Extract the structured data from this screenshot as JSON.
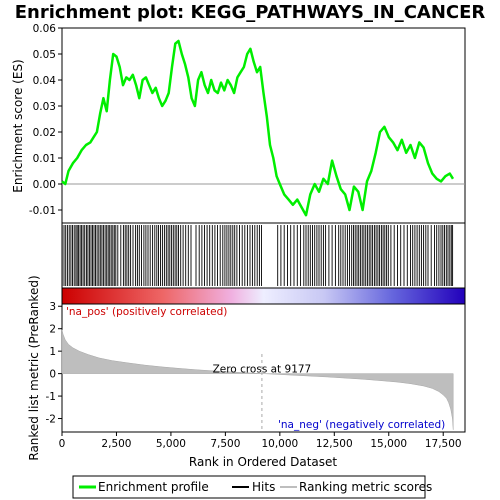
{
  "chart_data": {
    "type": "line",
    "title": "Enrichment plot: KEGG_PATHWAYS_IN_CANCER",
    "es_panel": {
      "ylabel": "Enrichment score (ES)",
      "ylim": [
        -0.015,
        0.06
      ],
      "yticks": [
        "-0.01",
        "0.00",
        "0.01",
        "0.02",
        "0.03",
        "0.04",
        "0.05",
        "0.06"
      ],
      "ytick_values": [
        -0.01,
        0.0,
        0.01,
        0.02,
        0.03,
        0.04,
        0.05,
        0.06
      ],
      "series": [
        {
          "name": "Enrichment profile",
          "color": "#00ee00",
          "x": [
            0,
            150,
            300,
            500,
            700,
            900,
            1100,
            1300,
            1450,
            1600,
            1750,
            1900,
            2050,
            2200,
            2350,
            2500,
            2650,
            2800,
            2950,
            3100,
            3250,
            3400,
            3550,
            3700,
            3850,
            4000,
            4150,
            4300,
            4450,
            4600,
            4750,
            4900,
            5050,
            5200,
            5350,
            5500,
            5650,
            5800,
            5950,
            6100,
            6250,
            6400,
            6550,
            6700,
            6850,
            7000,
            7150,
            7300,
            7450,
            7600,
            7750,
            7900,
            8050,
            8200,
            8350,
            8500,
            8650,
            8800,
            8950,
            9100,
            9250,
            9400,
            9550,
            9700,
            9850,
            10000,
            10200,
            10400,
            10600,
            10800,
            11000,
            11200,
            11400,
            11600,
            11800,
            12000,
            12200,
            12400,
            12600,
            12800,
            13000,
            13200,
            13400,
            13600,
            13800,
            14000,
            14200,
            14400,
            14600,
            14800,
            15000,
            15200,
            15400,
            15600,
            15800,
            16000,
            16200,
            16400,
            16600,
            16800,
            17000,
            17200,
            17400,
            17600,
            17800,
            17950
          ],
          "y": [
            0.001,
            0.0,
            0.005,
            0.008,
            0.01,
            0.013,
            0.015,
            0.016,
            0.018,
            0.02,
            0.027,
            0.033,
            0.028,
            0.04,
            0.05,
            0.049,
            0.045,
            0.038,
            0.041,
            0.04,
            0.042,
            0.038,
            0.033,
            0.04,
            0.041,
            0.038,
            0.035,
            0.037,
            0.033,
            0.03,
            0.032,
            0.035,
            0.045,
            0.054,
            0.055,
            0.05,
            0.046,
            0.041,
            0.033,
            0.03,
            0.04,
            0.043,
            0.038,
            0.035,
            0.04,
            0.036,
            0.035,
            0.039,
            0.036,
            0.04,
            0.038,
            0.035,
            0.041,
            0.043,
            0.045,
            0.05,
            0.052,
            0.047,
            0.043,
            0.045,
            0.035,
            0.026,
            0.015,
            0.01,
            0.003,
            0.0,
            -0.004,
            -0.006,
            -0.008,
            -0.006,
            -0.009,
            -0.012,
            -0.004,
            0.0,
            -0.003,
            0.002,
            0.0,
            0.009,
            0.003,
            -0.002,
            -0.004,
            -0.01,
            -0.001,
            -0.003,
            -0.01,
            0.001,
            0.005,
            0.012,
            0.02,
            0.022,
            0.018,
            0.016,
            0.013,
            0.017,
            0.012,
            0.015,
            0.01,
            0.016,
            0.014,
            0.008,
            0.004,
            0.002,
            0.001,
            0.003,
            0.004,
            0.002
          ]
        }
      ]
    },
    "hits_panel": {
      "series_name": "Hits",
      "hit_ranks": [
        10,
        90,
        170,
        250,
        330,
        410,
        480,
        560,
        640,
        700,
        760,
        830,
        900,
        970,
        1040,
        1120,
        1190,
        1260,
        1330,
        1400,
        1470,
        1540,
        1610,
        1690,
        1760,
        1830,
        1900,
        1980,
        2050,
        2120,
        2190,
        2260,
        2330,
        2400,
        2470,
        2560,
        2700,
        2820,
        2900,
        2980,
        3060,
        3150,
        3260,
        3380,
        3460,
        3550,
        3650,
        3760,
        3850,
        3950,
        4050,
        4160,
        4260,
        4350,
        4430,
        4520,
        4610,
        4700,
        4790,
        4870,
        4950,
        5030,
        5110,
        5190,
        5270,
        5350,
        5450,
        5560,
        5680,
        5800,
        5920,
        6150,
        6300,
        6420,
        6540,
        6660,
        6780,
        6900,
        7020,
        7140,
        7260,
        7380,
        7480,
        7570,
        7660,
        7750,
        7840,
        7930,
        8030,
        8150,
        8270,
        8390,
        8510,
        8630,
        8740,
        8850,
        8960,
        9060,
        9160,
        9900,
        10050,
        10200,
        10350,
        10500,
        10650,
        10800,
        10950,
        11100,
        11200,
        11300,
        11400,
        11500,
        11600,
        11700,
        11800,
        11900,
        12000,
        12100,
        12250,
        12400,
        12550,
        12700,
        12800,
        12900,
        13000,
        13100,
        13200,
        13300,
        13380,
        13460,
        13540,
        13620,
        13700,
        13780,
        13860,
        13940,
        14020,
        14100,
        14180,
        14260,
        14340,
        14420,
        14500,
        14580,
        14660,
        14740,
        14820,
        14900,
        14980,
        15100,
        15250,
        15400,
        15550,
        15700,
        15850,
        16000,
        16100,
        16200,
        16300,
        16400,
        16500,
        16600,
        16700,
        16800,
        16950,
        17100,
        17200,
        17300,
        17400,
        17480,
        17560,
        17640,
        17720,
        17800,
        17870,
        17930
      ]
    },
    "metric_panel": {
      "ylabel": "Ranked list metric (PreRanked)",
      "ylim": [
        -2.6,
        3.1
      ],
      "yticks": [
        "-2",
        "-1",
        "0",
        "1",
        "2",
        "3"
      ],
      "ytick_values": [
        -2,
        -1,
        0,
        1,
        2,
        3
      ],
      "series_name": "Ranking metric scores",
      "color": "#bebebe",
      "x": [
        0,
        50,
        150,
        300,
        500,
        800,
        1200,
        1700,
        2300,
        3000,
        3800,
        4600,
        5400,
        6200,
        7000,
        7800,
        8600,
        9177,
        9800,
        10600,
        11400,
        12200,
        13000,
        13800,
        14600,
        15400,
        16000,
        16600,
        17000,
        17300,
        17500,
        17650,
        17750,
        17850,
        17920,
        17960
      ],
      "y": [
        1.95,
        1.75,
        1.5,
        1.3,
        1.15,
        1.0,
        0.85,
        0.7,
        0.58,
        0.48,
        0.38,
        0.3,
        0.23,
        0.17,
        0.12,
        0.07,
        0.03,
        0.0,
        -0.03,
        -0.07,
        -0.11,
        -0.15,
        -0.2,
        -0.25,
        -0.31,
        -0.38,
        -0.45,
        -0.55,
        -0.66,
        -0.8,
        -0.95,
        -1.1,
        -1.3,
        -1.6,
        -2.0,
        -2.5
      ],
      "zero_cross_label": "Zero cross at 9177",
      "zero_cross": 9177,
      "pos_label": "'na_pos' (positively correlated)",
      "neg_label": "'na_neg' (negatively correlated)",
      "pos_color": "#cc0000",
      "neg_color": "#0000cc"
    },
    "xaxis": {
      "xlabel": "Rank in Ordered Dataset",
      "xlim": [
        0,
        18500
      ],
      "xticks": [
        "0",
        "2,500",
        "5,000",
        "7,500",
        "10,000",
        "12,500",
        "15,000",
        "17,500"
      ],
      "xtick_values": [
        0,
        2500,
        5000,
        7500,
        10000,
        12500,
        15000,
        17500
      ],
      "n_genes": 17960
    },
    "legend": {
      "placement": "bottom",
      "items": [
        {
          "label": "Enrichment profile",
          "color": "#00ee00"
        },
        {
          "label": "Hits",
          "color": "#000000"
        },
        {
          "label": "Ranking metric scores",
          "color": "#bebebe"
        }
      ]
    }
  }
}
